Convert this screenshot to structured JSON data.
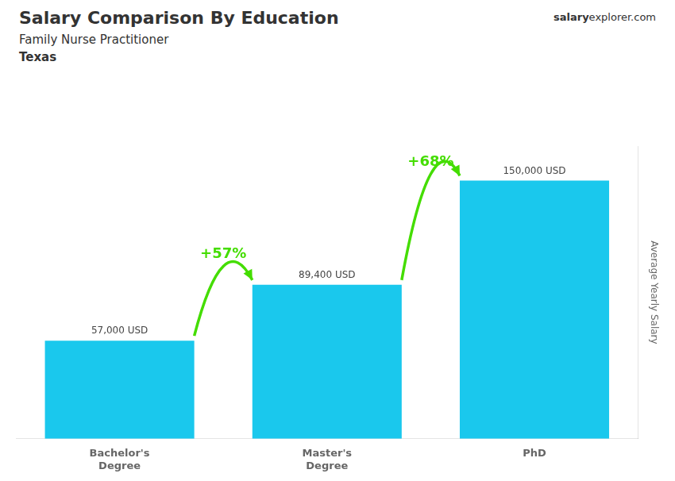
{
  "chart_data": {
    "type": "bar",
    "title": "Salary Comparison By Education",
    "subtitle": "Family Nurse Practitioner",
    "categories": [
      "Bachelor's\nDegree",
      "Master's\nDegree",
      "PhD"
    ],
    "values": [
      57000,
      89400,
      150000
    ],
    "value_labels": [
      "57,000 USD",
      "89,400 USD",
      "150,000 USD"
    ],
    "data_labels": true,
    "color": "#1AC8ED",
    "y_label": "Average Yearly Salary",
    "ylim": [
      0,
      170000
    ],
    "tick_labels": "x",
    "grid": false,
    "annotations": {
      "location": "Texas",
      "watermark": [
        "salary",
        "explorer.com"
      ],
      "changes": [
        {
          "text": "+57%",
          "color": "#44DD00"
        },
        {
          "text": "+68%",
          "color": "#44DD00"
        }
      ]
    }
  }
}
